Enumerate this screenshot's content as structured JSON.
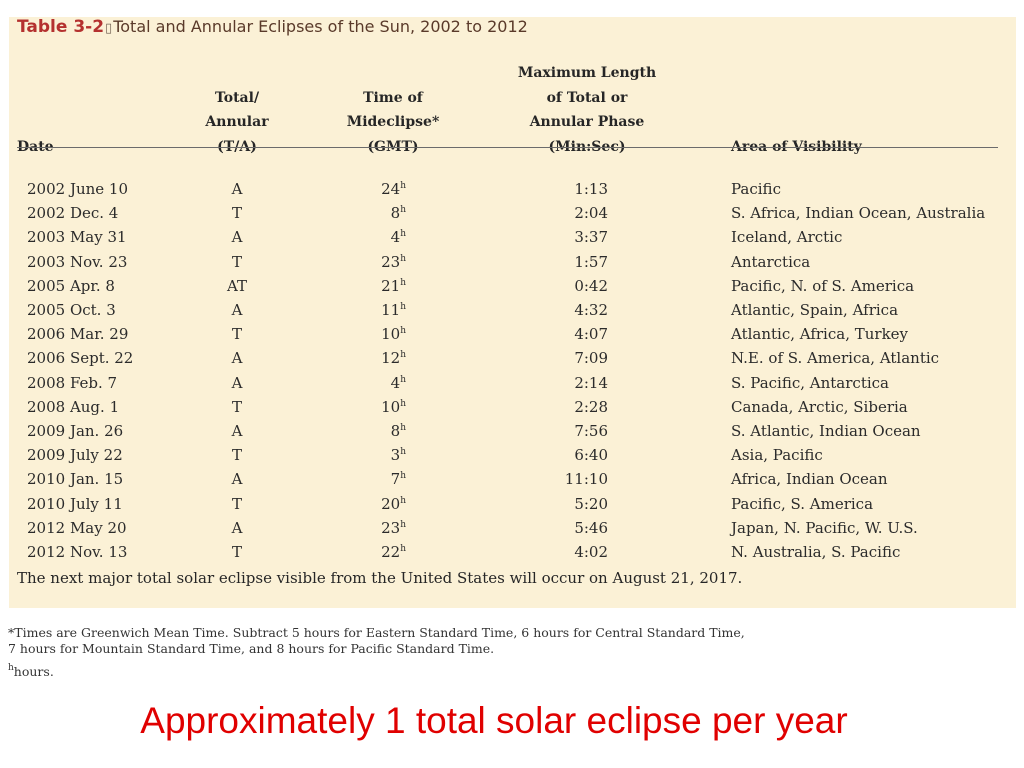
{
  "caption": {
    "label": "Table 3-2",
    "separator": "▯",
    "title": "Total and Annular Eclipses of the Sun, 2002 to 2012"
  },
  "headers": {
    "date": [
      "Date"
    ],
    "type": [
      "Total/",
      "Annular",
      "(T/A)"
    ],
    "time": [
      "Time of",
      "Mideclipse*",
      "(GMT)"
    ],
    "length": [
      "Maximum Length",
      "of Total or",
      "Annular Phase",
      "(Min:Sec)"
    ],
    "area": [
      "Area of Visibility"
    ]
  },
  "rows": [
    {
      "date": "2002 June 10",
      "type": "A",
      "time": "24",
      "length": "1:13",
      "area": "Pacific"
    },
    {
      "date": "2002 Dec. 4",
      "type": "T",
      "time": "8",
      "length": "2:04",
      "area": "S. Africa, Indian Ocean, Australia"
    },
    {
      "date": "2003 May 31",
      "type": "A",
      "time": "4",
      "length": "3:37",
      "area": "Iceland, Arctic"
    },
    {
      "date": "2003 Nov. 23",
      "type": "T",
      "time": "23",
      "length": "1:57",
      "area": "Antarctica"
    },
    {
      "date": "2005 Apr. 8",
      "type": "AT",
      "time": "21",
      "length": "0:42",
      "area": "Pacific, N. of S. America"
    },
    {
      "date": "2005 Oct. 3",
      "type": "A",
      "time": "11",
      "length": "4:32",
      "area": "Atlantic, Spain, Africa"
    },
    {
      "date": "2006 Mar. 29",
      "type": "T",
      "time": "10",
      "length": "4:07",
      "area": "Atlantic, Africa, Turkey"
    },
    {
      "date": "2006 Sept. 22",
      "type": "A",
      "time": "12",
      "length": "7:09",
      "area": "N.E. of S. America, Atlantic"
    },
    {
      "date": "2008 Feb. 7",
      "type": "A",
      "time": "4",
      "length": "2:14",
      "area": "S. Pacific, Antarctica"
    },
    {
      "date": "2008 Aug. 1",
      "type": "T",
      "time": "10",
      "length": "2:28",
      "area": "Canada, Arctic, Siberia"
    },
    {
      "date": "2009 Jan. 26",
      "type": "A",
      "time": "8",
      "length": "7:56",
      "area": "S. Atlantic, Indian Ocean"
    },
    {
      "date": "2009 July 22",
      "type": "T",
      "time": "3",
      "length": "6:40",
      "area": "Asia, Pacific"
    },
    {
      "date": "2010 Jan. 15",
      "type": "A",
      "time": "7",
      "length": "11:10",
      "area": "Africa, Indian Ocean"
    },
    {
      "date": "2010 July 11",
      "type": "T",
      "time": "20",
      "length": "5:20",
      "area": "Pacific, S. America"
    },
    {
      "date": "2012 May 20",
      "type": "A",
      "time": "23",
      "length": "5:46",
      "area": "Japan, N. Pacific, W. U.S."
    },
    {
      "date": "2012 Nov. 13",
      "type": "T",
      "time": "22",
      "length": "4:02",
      "area": "N. Australia, S. Pacific"
    }
  ],
  "hour_superscript": "h",
  "note": "The next major total solar eclipse visible from the United States will occur on August 21, 2017.",
  "footnotes": [
    "*Times are Greenwich Mean Time. Subtract 5 hours for Eastern Standard Time, 6 hours for Central Standard Time,",
    "7 hours for Mountain Standard Time, and 8 hours for Pacific Standard Time."
  ],
  "hours_note": {
    "sup": "h",
    "text": "hours."
  },
  "headline": "Approximately 1 total solar eclipse per year",
  "colors": {
    "panel": "#fbf1d6",
    "label": "#b4312f",
    "headline": "#e00000"
  }
}
